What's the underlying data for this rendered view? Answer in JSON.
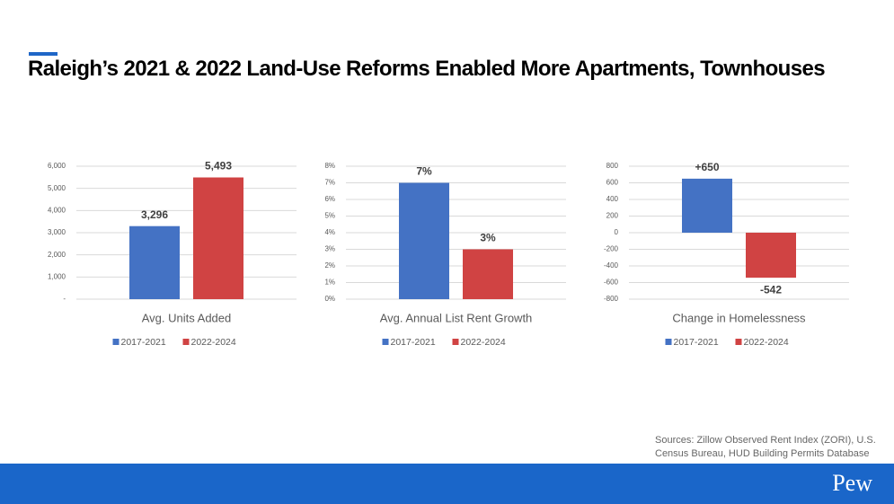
{
  "title": "Raleigh’s 2021 & 2022 Land-Use Reforms Enabled More Apartments, Townhouses",
  "source": [
    "Sources: Zillow Observed Rent Index (ZORI), U.S.",
    "Census Bureau, HUD Building Permits Database"
  ],
  "logo": "Pew",
  "chart_data": [
    {
      "type": "bar",
      "title": "Avg. Units Added",
      "categories": [
        null
      ],
      "series": [
        {
          "name": "2017-2021",
          "color": "#4472c4",
          "values": [
            3296
          ],
          "value_labels": [
            "3,296"
          ]
        },
        {
          "name": "2022-2024",
          "color": "#d04343",
          "values": [
            5493
          ],
          "value_labels": [
            "5,493"
          ]
        }
      ],
      "ylim": [
        0,
        6000
      ],
      "yticks": [
        {
          "value": 0,
          "label": "-"
        },
        {
          "value": 1000,
          "label": "1,000"
        },
        {
          "value": 2000,
          "label": "2,000"
        },
        {
          "value": 3000,
          "label": "3,000"
        },
        {
          "value": 4000,
          "label": "4,000"
        },
        {
          "value": 5000,
          "label": "5,000"
        },
        {
          "value": 6000,
          "label": "6,000"
        }
      ],
      "grid": true,
      "legend": "bottom"
    },
    {
      "type": "bar",
      "title": "Avg. Annual List Rent Growth",
      "categories": [
        null
      ],
      "series": [
        {
          "name": "2017-2021",
          "color": "#4472c4",
          "values": [
            7
          ],
          "value_labels": [
            "7%"
          ]
        },
        {
          "name": "2022-2024",
          "color": "#d04343",
          "values": [
            3
          ],
          "value_labels": [
            "3%"
          ]
        }
      ],
      "ylim": [
        0,
        8
      ],
      "yticks": [
        {
          "value": 0,
          "label": "0%"
        },
        {
          "value": 1,
          "label": "1%"
        },
        {
          "value": 2,
          "label": "2%"
        },
        {
          "value": 3,
          "label": "3%"
        },
        {
          "value": 4,
          "label": "4%"
        },
        {
          "value": 5,
          "label": "5%"
        },
        {
          "value": 6,
          "label": "6%"
        },
        {
          "value": 7,
          "label": "7%"
        },
        {
          "value": 8,
          "label": "8%"
        }
      ],
      "grid": true,
      "legend": "bottom"
    },
    {
      "type": "bar",
      "title": "Change in Homelessness",
      "categories": [
        null
      ],
      "series": [
        {
          "name": "2017-2021",
          "color": "#4472c4",
          "values": [
            650
          ],
          "value_labels": [
            "+650"
          ]
        },
        {
          "name": "2022-2024",
          "color": "#d04343",
          "values": [
            -542
          ],
          "value_labels": [
            "-542"
          ]
        }
      ],
      "ylim": [
        -800,
        800
      ],
      "yticks": [
        -800,
        -600,
        -400,
        -200,
        0,
        200,
        400,
        600,
        800
      ],
      "grid": true,
      "legend": "bottom"
    }
  ]
}
